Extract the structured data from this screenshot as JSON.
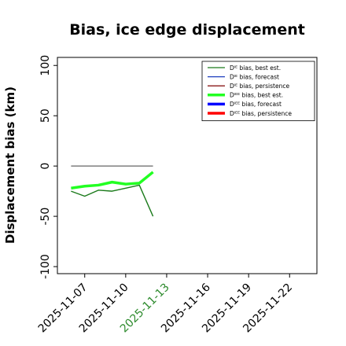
{
  "chart_data": {
    "type": "line",
    "title": "Bias, ice edge displacement",
    "xlabel": "",
    "ylabel": "Displacement bias (km)",
    "x_range": [
      "2025-11-05",
      "2025-11-24"
    ],
    "ylim": [
      -107,
      108
    ],
    "x_ticks": [
      "2025-11-07",
      "2025-11-10",
      "2025-11-13",
      "2025-11-16",
      "2025-11-19",
      "2025-11-22"
    ],
    "x_tick_colors": [
      "#000000",
      "#000000",
      "#2e8b2e",
      "#000000",
      "#000000",
      "#000000"
    ],
    "y_ticks": [
      {
        "value": -100,
        "label": "-100"
      },
      {
        "value": -50,
        "label": "-50"
      },
      {
        "value": 0,
        "label": "0"
      },
      {
        "value": 50,
        "label": "50"
      },
      {
        "value": 100,
        "label": "100"
      }
    ],
    "grid": false,
    "legend_position": "top-right",
    "legend": [
      {
        "label": "Dᴵᴱ bias, best est.",
        "color": "#1a7a1a",
        "width": 1.3
      },
      {
        "label": "Dᴵᴱ bias, forecast",
        "color": "#1f3fbf",
        "width": 1.3
      },
      {
        "label": "Dᴵᴱ bias, persistence",
        "color": "#8b1a1a",
        "width": 1.3
      },
      {
        "label": "Dᴵᴱᴱ bias, best est.",
        "color": "#22ff22",
        "width": 3.5
      },
      {
        "label": "Dᴵᴱᴱ bias, forecast",
        "color": "#0000ff",
        "width": 3.5
      },
      {
        "label": "Dᴵᴱᴱ bias, persistence",
        "color": "#ff0000",
        "width": 3.5
      }
    ],
    "reference_line": {
      "color": "#666666",
      "x": [
        "2025-11-06",
        "2025-11-12"
      ],
      "y": [
        0,
        0
      ]
    },
    "series": [
      {
        "name": "Dᴵᴱ bias, best est.",
        "color": "#1a7a1a",
        "width": 1.4,
        "x": [
          "2025-11-06",
          "2025-11-07",
          "2025-11-08",
          "2025-11-09",
          "2025-11-10",
          "2025-11-11",
          "2025-11-12"
        ],
        "y": [
          -25,
          -30,
          -24,
          -25,
          -22,
          -19,
          -50
        ]
      },
      {
        "name": "Dᴵᴱᴱ bias, best est.",
        "color": "#22ff22",
        "width": 3.5,
        "x": [
          "2025-11-06",
          "2025-11-07",
          "2025-11-08",
          "2025-11-09",
          "2025-11-10",
          "2025-11-11",
          "2025-11-12"
        ],
        "y": [
          -22,
          -20,
          -19,
          -16,
          -18,
          -17,
          -6
        ]
      }
    ]
  }
}
